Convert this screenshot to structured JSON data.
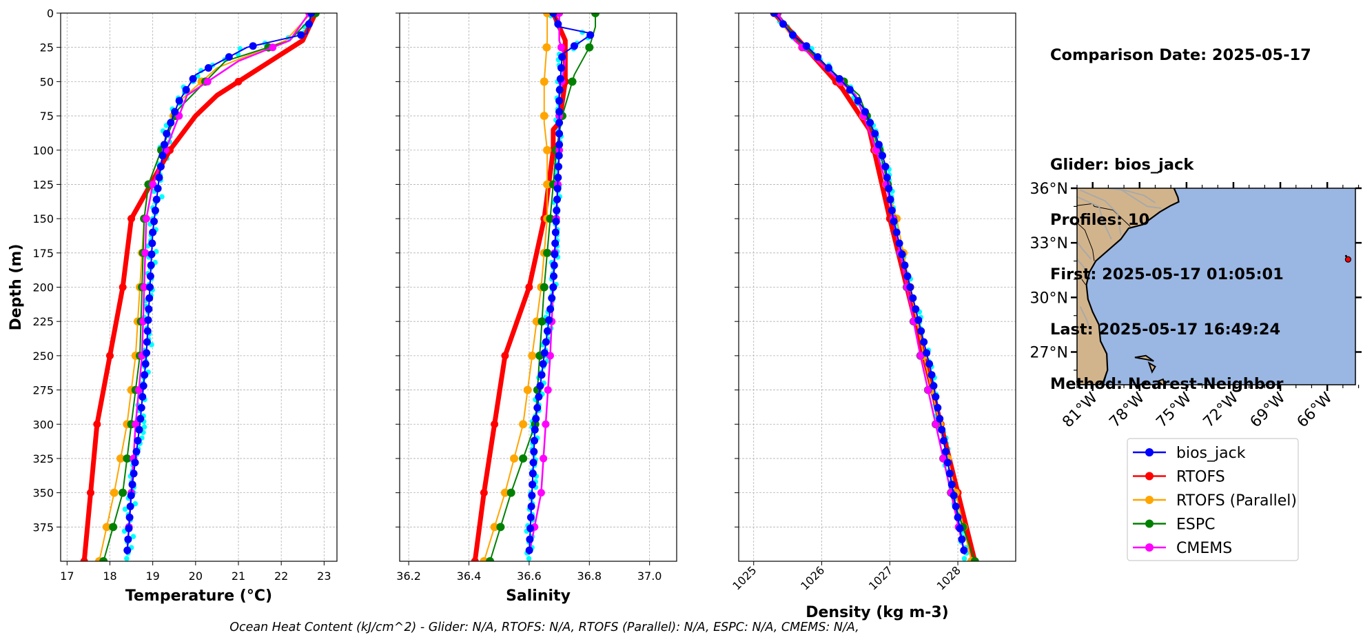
{
  "info": {
    "comparison_date": "Comparison Date: 2025-05-17",
    "glider": "Glider: bios_jack",
    "profiles": "Profiles: 10",
    "first": "First: 2025-05-17 01:05:01",
    "last": "Last: 2025-05-17 16:49:24",
    "method": "Method: Nearest-Neighbor"
  },
  "footer": "Ocean Heat Content (kJ/cm^2) - Glider: N/A,  RTOFS: N/A,  RTOFS (Parallel): N/A,  ESPC: N/A,  CMEMS: N/A,",
  "colors": {
    "bios_jack": "#0000ff",
    "glider_raw": "#00ffff",
    "RTOFS": "#ff0000",
    "RTOFS (Parallel)": "#ffa500",
    "ESPC": "#008000",
    "CMEMS": "#ff00ff",
    "land": "#d2b48c",
    "ocean": "#9ab6e2"
  },
  "chart_data": [
    {
      "type": "line",
      "ylabel": "Depth (m)",
      "xlabel": "Temperature (°C)",
      "xlim": [
        16.85,
        23.3
      ],
      "ylim": [
        400,
        0
      ],
      "xticks": [
        "17",
        "18",
        "19",
        "20",
        "21",
        "22",
        "23"
      ],
      "yticks": [
        "0",
        "25",
        "50",
        "75",
        "100",
        "125",
        "150",
        "175",
        "200",
        "225",
        "250",
        "275",
        "300",
        "325",
        "350",
        "375"
      ],
      "grid": true,
      "series": [
        {
          "name": "bios_jack",
          "x": [
            22.7,
            22.6,
            21.2,
            20.0,
            19.6,
            19.3,
            19.15,
            19.0,
            18.85,
            18.7,
            18.5,
            18.4
          ],
          "y": [
            0,
            15,
            25,
            45,
            65,
            90,
            120,
            160,
            250,
            300,
            350,
            395
          ]
        },
        {
          "name": "RTOFS",
          "x": [
            22.8,
            22.5,
            21.5,
            20.5,
            20.0,
            19.4,
            18.5,
            18.3,
            18.0,
            17.7,
            17.4
          ],
          "y": [
            0,
            20,
            40,
            60,
            75,
            100,
            150,
            200,
            250,
            300,
            400
          ]
        },
        {
          "name": "RTOFS (Parallel)",
          "x": [
            22.7,
            22.1,
            20.5,
            19.6,
            19.2,
            18.9,
            18.8,
            18.6,
            18.4,
            18.1,
            17.75
          ],
          "y": [
            0,
            20,
            40,
            65,
            100,
            125,
            150,
            250,
            300,
            350,
            400
          ]
        },
        {
          "name": "ESPC",
          "x": [
            22.8,
            22.2,
            20.7,
            19.6,
            19.2,
            18.9,
            18.8,
            18.7,
            18.5,
            18.3,
            17.85
          ],
          "y": [
            0,
            20,
            35,
            70,
            100,
            125,
            150,
            250,
            300,
            350,
            400
          ]
        },
        {
          "name": "CMEMS",
          "x": [
            22.65,
            22.2,
            21.0,
            19.8,
            19.3,
            19.0,
            18.85,
            18.75,
            18.6,
            18.5,
            18.4
          ],
          "y": [
            0,
            20,
            35,
            60,
            100,
            125,
            150,
            250,
            300,
            350,
            395
          ]
        }
      ]
    },
    {
      "type": "line",
      "xlabel": "Salinity",
      "xlim": [
        36.17,
        37.09
      ],
      "ylim": [
        400,
        0
      ],
      "xticks": [
        "36.2",
        "36.4",
        "36.6",
        "36.8",
        "37.0"
      ],
      "grid": true,
      "series": [
        {
          "name": "bios_jack",
          "x": [
            36.68,
            36.7,
            36.81,
            36.71,
            36.7,
            36.7,
            36.69,
            36.68,
            36.65,
            36.62,
            36.6
          ],
          "y": [
            0,
            10,
            15,
            30,
            60,
            100,
            150,
            200,
            250,
            300,
            395
          ]
        },
        {
          "name": "RTOFS",
          "x": [
            36.68,
            36.72,
            36.72,
            36.7,
            36.68,
            36.68,
            36.65,
            36.6,
            36.52,
            36.45,
            36.42
          ],
          "y": [
            0,
            20,
            50,
            80,
            85,
            100,
            150,
            200,
            250,
            350,
            400
          ]
        },
        {
          "name": "RTOFS (Parallel)",
          "x": [
            36.66,
            36.66,
            36.65,
            36.65,
            36.66,
            36.66,
            36.66,
            36.64,
            36.58,
            36.52,
            36.45
          ],
          "y": [
            0,
            20,
            50,
            80,
            100,
            125,
            150,
            200,
            300,
            350,
            400
          ]
        },
        {
          "name": "ESPC",
          "x": [
            36.82,
            36.82,
            36.8,
            36.75,
            36.71,
            36.69,
            36.68,
            36.67,
            36.65,
            36.62,
            36.54,
            36.47
          ],
          "y": [
            0,
            10,
            25,
            45,
            75,
            100,
            125,
            150,
            200,
            300,
            350,
            400
          ]
        },
        {
          "name": "CMEMS",
          "x": [
            36.7,
            36.7,
            36.72,
            36.7,
            36.7,
            36.69,
            36.68,
            36.67,
            36.64,
            36.6
          ],
          "y": [
            0,
            20,
            35,
            60,
            100,
            150,
            200,
            250,
            350,
            395
          ]
        }
      ]
    },
    {
      "type": "line",
      "xlabel": "Density (kg m-3)",
      "xlim": [
        1024.78,
        1028.85
      ],
      "ylim": [
        400,
        0
      ],
      "xticks": [
        "1025",
        "1026",
        "1027",
        "1028"
      ],
      "grid": true,
      "series": [
        {
          "name": "bios_jack",
          "x": [
            1025.3,
            1025.55,
            1025.8,
            1026.1,
            1026.4,
            1026.62,
            1026.8,
            1026.93,
            1027.05,
            1027.3,
            1027.6,
            1028.1
          ],
          "y": [
            0,
            15,
            25,
            40,
            55,
            70,
            90,
            110,
            150,
            200,
            260,
            395
          ]
        },
        {
          "name": "RTOFS",
          "x": [
            1025.3,
            1025.85,
            1026.3,
            1026.7,
            1027.0,
            1027.5,
            1028.25
          ],
          "y": [
            0,
            30,
            55,
            85,
            150,
            250,
            400
          ]
        },
        {
          "name": "RTOFS (Parallel)",
          "x": [
            1025.3,
            1025.6,
            1026.05,
            1026.5,
            1026.8,
            1026.95,
            1027.1,
            1027.5,
            1028.2
          ],
          "y": [
            0,
            20,
            40,
            60,
            100,
            125,
            150,
            250,
            400
          ]
        },
        {
          "name": "ESPC",
          "x": [
            1025.35,
            1025.65,
            1026.1,
            1026.55,
            1026.85,
            1026.97,
            1027.05,
            1027.45,
            1027.9,
            1028.25
          ],
          "y": [
            0,
            20,
            40,
            60,
            100,
            125,
            150,
            250,
            350,
            400
          ]
        },
        {
          "name": "CMEMS",
          "x": [
            1025.35,
            1025.6,
            1026.05,
            1026.5,
            1026.8,
            1026.95,
            1027.05,
            1027.45,
            1028.1
          ],
          "y": [
            0,
            20,
            40,
            60,
            100,
            125,
            150,
            250,
            395
          ]
        }
      ]
    }
  ],
  "map": {
    "lon_ticks": [
      "81°W",
      "78°W",
      "75°W",
      "72°W",
      "69°W",
      "66°W"
    ],
    "lat_ticks": [
      "36°N",
      "33°N",
      "30°N",
      "27°N"
    ],
    "glider_position": {
      "lon": -64.8,
      "lat": 32.2
    }
  },
  "legend": [
    "bios_jack",
    "RTOFS",
    "RTOFS (Parallel)",
    "ESPC",
    "CMEMS"
  ]
}
